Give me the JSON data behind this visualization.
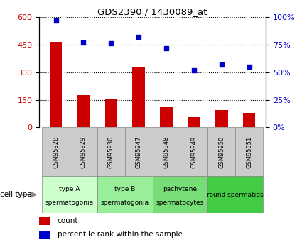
{
  "title": "GDS2390 / 1430089_at",
  "samples": [
    "GSM95928",
    "GSM95929",
    "GSM95930",
    "GSM95947",
    "GSM95948",
    "GSM95949",
    "GSM95950",
    "GSM95951"
  ],
  "counts": [
    465,
    175,
    155,
    325,
    115,
    55,
    95,
    80
  ],
  "percentiles": [
    97,
    77,
    76,
    82,
    72,
    52,
    57,
    55
  ],
  "ylim_left": [
    0,
    600
  ],
  "ylim_right": [
    0,
    100
  ],
  "yticks_left": [
    0,
    150,
    300,
    450,
    600
  ],
  "yticks_right": [
    0,
    25,
    50,
    75,
    100
  ],
  "bar_color": "#cc0000",
  "dot_color": "#0000cc",
  "cell_type_groups": [
    {
      "label": "type A\nspermatogonia",
      "samples": [
        0,
        1
      ],
      "color": "#ccffcc"
    },
    {
      "label": "type B\nspermatogonia",
      "samples": [
        2,
        3
      ],
      "color": "#99ee99"
    },
    {
      "label": "pachytene\nspermatocytes",
      "samples": [
        4,
        5
      ],
      "color": "#77dd77"
    },
    {
      "label": "round spermatids",
      "samples": [
        6,
        7
      ],
      "color": "#44cc44"
    }
  ],
  "tick_label_color_left": "#cc0000",
  "tick_label_color_right": "#0000cc",
  "grid_linestyle": "dotted",
  "bar_width": 0.45,
  "legend_count_label": "count",
  "legend_pct_label": "percentile rank within the sample",
  "cell_type_label": "cell type",
  "sample_bg_color": "#cccccc",
  "sample_border_color": "#888888"
}
